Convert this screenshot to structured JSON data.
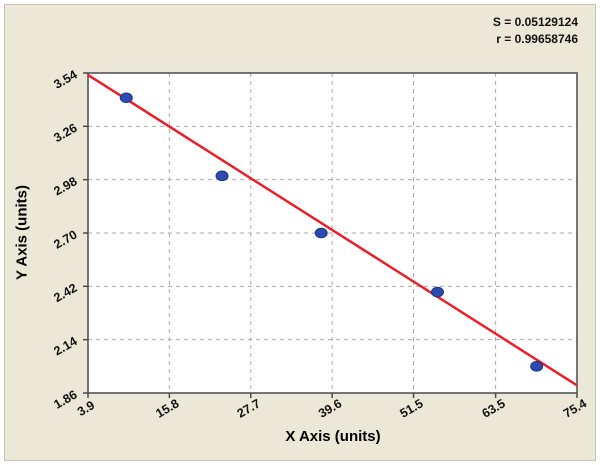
{
  "stats": {
    "s_label": "S = 0.05129124",
    "r_label": "r = 0.99658746"
  },
  "chart_data": {
    "type": "scatter",
    "title": "",
    "xlabel": "X Axis (units)",
    "ylabel": "Y Axis (units)",
    "x_ticks": [
      "3.9",
      "15.8",
      "27.7",
      "39.6",
      "51.5",
      "63.5",
      "75.4"
    ],
    "y_ticks": [
      "1.86",
      "2.14",
      "2.42",
      "2.70",
      "2.98",
      "3.26",
      "3.54"
    ],
    "xlim": [
      3.9,
      75.4
    ],
    "ylim": [
      1.86,
      3.54
    ],
    "grid": "dashed",
    "legend": "none",
    "points": [
      {
        "x": 9.5,
        "y": 3.41
      },
      {
        "x": 23.5,
        "y": 3.0
      },
      {
        "x": 38.0,
        "y": 2.7
      },
      {
        "x": 55.0,
        "y": 2.39
      },
      {
        "x": 69.5,
        "y": 2.0
      }
    ],
    "regression_line": {
      "x1": 3.9,
      "y1": 3.53,
      "x2": 75.4,
      "y2": 1.9
    },
    "colors": {
      "point_fill": "#2b4bb0",
      "point_stroke": "#1d347e",
      "line": "#ee1c25",
      "grid": "#a9a9a9",
      "axis": "#4a4a4a",
      "tick_text": "#111111",
      "panel_bg": "#ece8d8",
      "plot_bg": "#ffffff"
    }
  }
}
